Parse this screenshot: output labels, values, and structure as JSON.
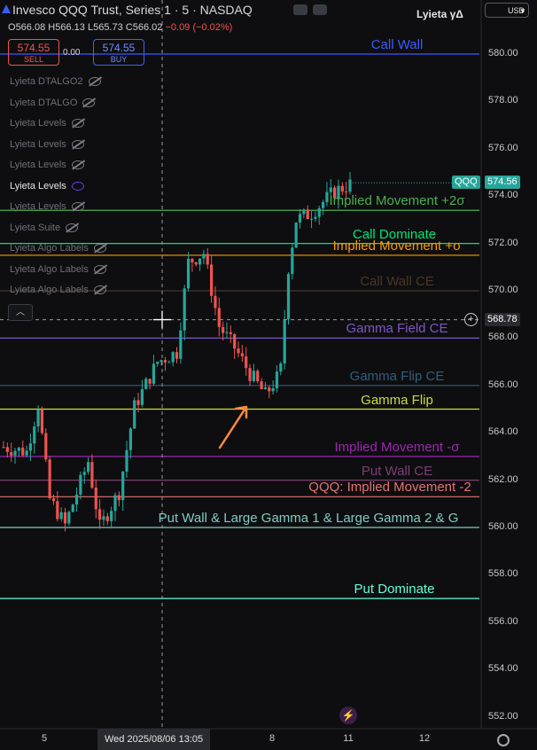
{
  "header": {
    "title": "Invesco QQQ Trust, Series 1 · 5 · NASDAQ",
    "brand": "Lyieta γΔ",
    "currency": "USD",
    "ohlc": {
      "o_label": "O",
      "o": "566.08",
      "h_label": "H",
      "h": "566.13",
      "l_label": "L",
      "l": "565.73",
      "c_label": "C",
      "c": "566.02",
      "change": "−0.09 (−0.02%)"
    },
    "sell": {
      "price": "574.55",
      "label": "SELL"
    },
    "spread": "0.00",
    "buy": {
      "price": "574.55",
      "label": "BUY"
    }
  },
  "indicators": [
    {
      "name": "Lyieta DTALGO2",
      "active": false
    },
    {
      "name": "Lyieta DTALGO",
      "active": false
    },
    {
      "name": "Lyieta Levels",
      "active": false
    },
    {
      "name": "Lyieta Levels",
      "active": false
    },
    {
      "name": "Lyieta Levels",
      "active": false
    },
    {
      "name": "Lyieta Levels",
      "active": true
    },
    {
      "name": "Lyieta Levels",
      "active": false
    },
    {
      "name": "Lyieta Suite",
      "active": false
    },
    {
      "name": "Lyieta Algo Labels",
      "active": false
    },
    {
      "name": "Lyieta Algo Labels",
      "active": false
    },
    {
      "name": "Lyieta Algo Labels",
      "active": false
    }
  ],
  "colors": {
    "up": "#26a69a",
    "down": "#ef5350",
    "background": "#0e0e10",
    "arrow": "#ff8a3c"
  },
  "chart_data": {
    "type": "candlestick",
    "symbol": "QQQ",
    "ylim": [
      551.5,
      581.5
    ],
    "y_ticks": [
      580,
      578,
      576,
      574,
      572,
      570,
      568,
      566,
      564,
      562,
      560,
      558,
      556,
      554,
      552
    ],
    "x_ticks": [
      "5",
      "8",
      "11",
      "12"
    ],
    "x_cursor_label": "Wed 2025/08/06   13:05",
    "last_price": {
      "label": "QQQ",
      "value": "574.56"
    },
    "crosshair_price": "568.78",
    "levels": [
      {
        "name": "Call Wall",
        "price": 580.0,
        "color": "#3d5afe",
        "label_x": 448
      },
      {
        "name": "Implied Movement +2σ",
        "price": 573.4,
        "color": "#4caf50",
        "label_x": 448
      },
      {
        "name": "Call Dominate",
        "price": 572.0,
        "color": "#00e676",
        "label_x": 445
      },
      {
        "name": "Implied Movement +σ",
        "price": 571.5,
        "color": "#ff9800",
        "label_x": 448
      },
      {
        "name": "Call Wall CE",
        "price": 570.0,
        "color": "#4a3626",
        "label_x": 448
      },
      {
        "name": "Gamma Field CE",
        "price": 568.0,
        "color": "#7e57c2",
        "label_x": 448
      },
      {
        "name": "Gamma Flip CE",
        "price": 566.0,
        "color": "#2f5f7e",
        "label_x": 448
      },
      {
        "name": "Gamma Flip",
        "price": 565.0,
        "color": "#cddc39",
        "label_x": 448
      },
      {
        "name": "Implied Movement -σ",
        "price": 563.0,
        "color": "#9c27b0",
        "label_x": 448
      },
      {
        "name": "Put Wall CE",
        "price": 562.0,
        "color": "#7b3f73",
        "label_x": 448
      },
      {
        "name": "QQQ: Implied Movement -2",
        "price": 561.3,
        "color": "#e57373",
        "label_x": 440
      },
      {
        "name": "Put Wall & Large Gamma 1 & Large Gamma 2 & G",
        "price": 560.0,
        "color": "#80cbc4",
        "label_x": 348
      },
      {
        "name": "Put Dominate",
        "price": 557.0,
        "color": "#64ffda",
        "label_x": 445
      }
    ],
    "annotation": {
      "type": "arrow",
      "from_x": "bar 88",
      "to_price": 564.0
    }
  }
}
